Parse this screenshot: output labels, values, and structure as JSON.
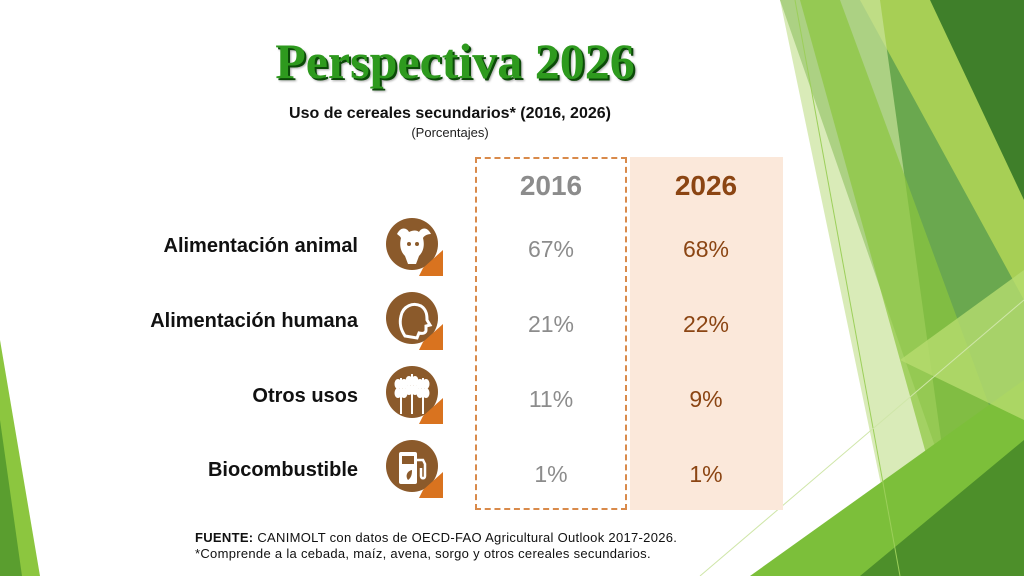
{
  "title": "Perspectiva 2026",
  "subtitle": "Uso de cereales secundarios* (2016, 2026)",
  "unit": "(Porcentajes)",
  "chart_data": {
    "type": "table",
    "title": "Uso de cereales secundarios* (2016, 2026)",
    "columns": [
      "2016",
      "2026"
    ],
    "rows": [
      {
        "category": "Alimentación animal",
        "icon": "cow-head-icon",
        "values": [
          "67%",
          "68%"
        ]
      },
      {
        "category": "Alimentación humana",
        "icon": "human-head-icon",
        "values": [
          "21%",
          "22%"
        ]
      },
      {
        "category": "Otros usos",
        "icon": "wheat-icon",
        "values": [
          "11%",
          "9%"
        ]
      },
      {
        "category": "Biocombustible",
        "icon": "fuel-pump-icon",
        "values": [
          "1%",
          "1%"
        ]
      }
    ]
  },
  "footer": {
    "source_label": "FUENTE:",
    "source_text": " CANIMOLT  con datos de OECD-FAO Agricultural Outlook 2017-2026.",
    "note": "*Comprende a la cebada, maíz, avena, sorgo y otros cereales secundarios."
  },
  "colors": {
    "title_green": "#2e9a1e",
    "icon_brown": "#8b5a2b",
    "accent_orange": "#d9731f",
    "highlight_2026": "#fbe8da",
    "value_2026": "#8b4513",
    "value_2016": "#8c8c8c"
  }
}
